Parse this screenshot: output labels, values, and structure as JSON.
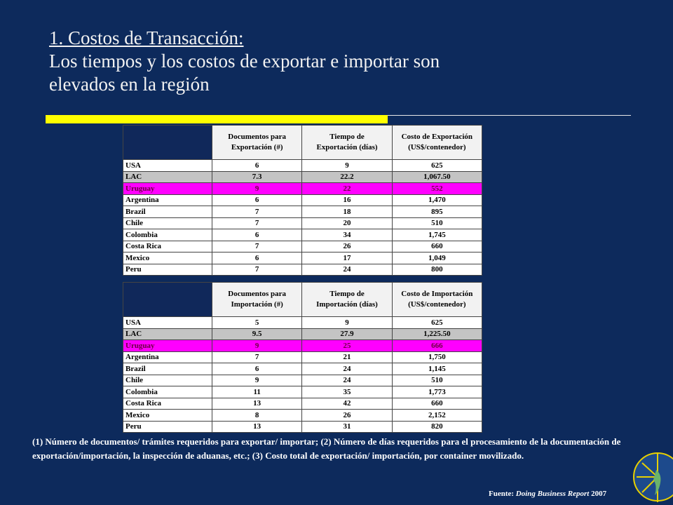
{
  "header": {
    "title": [
      "1. Costos de Transacción:",
      "Los tiempos y los costos de exportar e importar son",
      "elevados en la región"
    ]
  },
  "tables": [
    {
      "columns": [
        [
          "Documentos para",
          "Exportación (#)"
        ],
        [
          "Tiempo de",
          "Exportación (días)"
        ],
        [
          "Costo de Exportación",
          "(US$/contenedor)"
        ]
      ],
      "rows": [
        [
          "USA",
          "6",
          "9",
          "625"
        ],
        [
          "LAC",
          "7.3",
          "22.2",
          "1,067.50"
        ],
        [
          "Uruguay",
          "9",
          "22",
          "552"
        ],
        [
          "Argentina",
          "6",
          "16",
          "1,470"
        ],
        [
          "Brazil",
          "7",
          "18",
          "895"
        ],
        [
          "Chile",
          "7",
          "20",
          "510"
        ],
        [
          "Colombia",
          "6",
          "34",
          "1,745"
        ],
        [
          "Costa Rica",
          "7",
          "26",
          "660"
        ],
        [
          "Mexico",
          "6",
          "17",
          "1,049"
        ],
        [
          "Peru",
          "7",
          "24",
          "800"
        ]
      ]
    },
    {
      "columns": [
        [
          "Documentos para",
          "Importación (#)"
        ],
        [
          "Tiempo de",
          "Importación (días)"
        ],
        [
          "Costo de Importación",
          "(US$/contenedor)"
        ]
      ],
      "rows": [
        [
          "USA",
          "5",
          "9",
          "625"
        ],
        [
          "LAC",
          "9.5",
          "27.9",
          "1,225.50"
        ],
        [
          "Uruguay",
          "9",
          "25",
          "666"
        ],
        [
          "Argentina",
          "7",
          "21",
          "1,750"
        ],
        [
          "Brazil",
          "6",
          "24",
          "1,145"
        ],
        [
          "Chile",
          "9",
          "24",
          "510"
        ],
        [
          "Colombia",
          "11",
          "35",
          "1,773"
        ],
        [
          "Costa Rica",
          "13",
          "42",
          "660"
        ],
        [
          "Mexico",
          "8",
          "26",
          "2,152"
        ],
        [
          "Peru",
          "13",
          "31",
          "820"
        ]
      ]
    }
  ],
  "footnote": "(1) Número de documentos/ trámites requeridos para exportar/ importar; (2) Número de días requeridos para el procesamiento de la documentación de exportación/importación, la inspección de aduanas, etc.; (3) Costo total de exportación/ importación, por container movilizado.",
  "source": [
    "Fuente: ",
    "Doing Business Report",
    " 2007"
  ]
}
